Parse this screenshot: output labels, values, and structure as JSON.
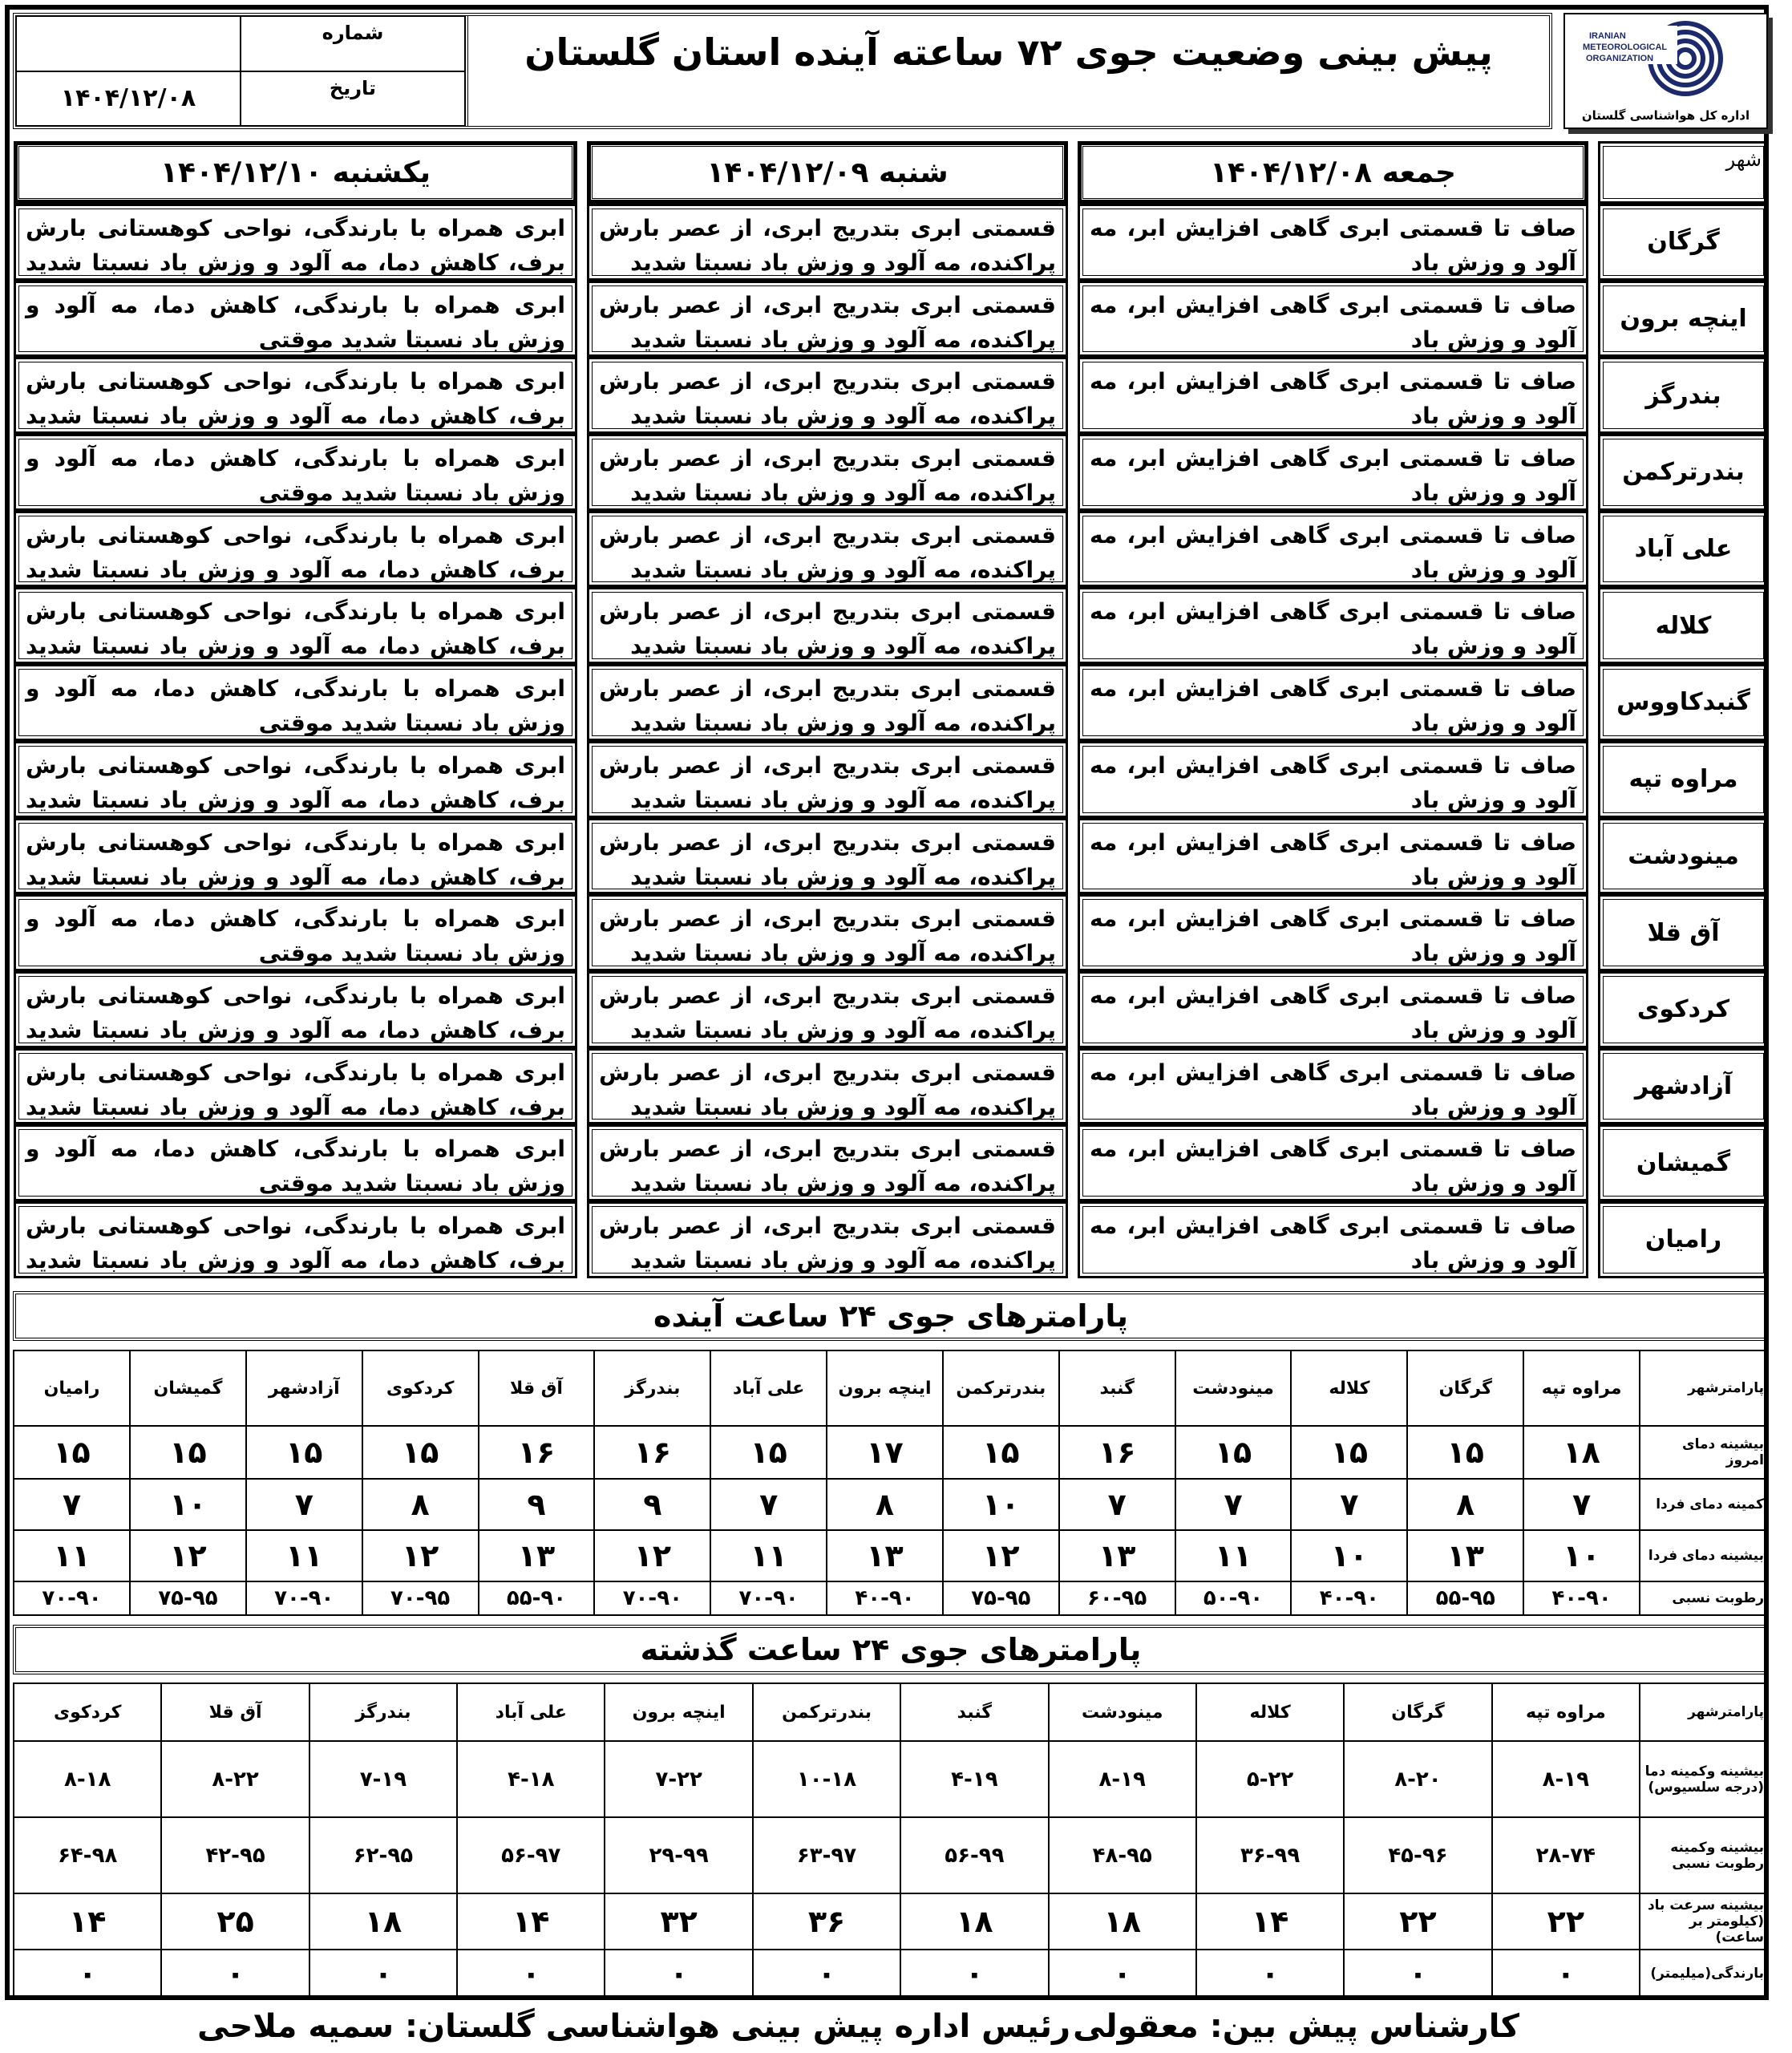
{
  "header": {
    "title": "پیش بینی وضعیت جوی ۷۲ ساعته آینده استان گلستان",
    "number_label": "شماره",
    "number_value": "",
    "date_label": "تاریخ",
    "date_value": "۱۴۰۴/۱۲/۰۸"
  },
  "logo": {
    "text_en": "IRANIAN METEOROLOGICAL ORGANIZATION",
    "caption": "اداره کل هواشناسی گلستان"
  },
  "forecast": {
    "city_header": "شهر",
    "days": [
      "جمعه ۱۴۰۴/۱۲/۰۸",
      "شنبه ۱۴۰۴/۱۲/۰۹",
      "یکشنبه ۱۴۰۴/۱۲/۱۰"
    ],
    "rows": [
      {
        "city": "گرگان",
        "d1": "صاف تا قسمتی ابری گاهی افزایش ابر، مه آلود و وزش باد",
        "d2": "قسمتی ابری بتدریج ابری، از عصر بارش پراکنده، مه آلود و وزش باد نسبتا شدید",
        "d3": "ابری همراه با بارندگی، نواحی کوهستانی بارش برف، کاهش دما، مه آلود و وزش باد نسبتا شدید موقتی"
      },
      {
        "city": "اینچه برون",
        "d1": "صاف تا قسمتی ابری گاهی افزایش ابر، مه آلود و وزش باد",
        "d2": "قسمتی ابری بتدریج ابری، از عصر بارش پراکنده، مه آلود و وزش باد نسبتا شدید",
        "d3": "ابری همراه با بارندگی، کاهش دما، مه آلود و وزش باد نسبتا شدید موقتی"
      },
      {
        "city": "بندرگز",
        "d1": "صاف تا قسمتی ابری گاهی افزایش ابر، مه آلود و وزش باد",
        "d2": "قسمتی ابری بتدریج ابری، از عصر بارش پراکنده، مه آلود و وزش باد نسبتا شدید",
        "d3": "ابری همراه با بارندگی، نواحی کوهستانی بارش برف، کاهش دما، مه آلود و وزش باد نسبتا شدید موقتی"
      },
      {
        "city": "بندرترکمن",
        "d1": "صاف تا قسمتی ابری گاهی افزایش ابر، مه آلود و وزش باد",
        "d2": "قسمتی ابری بتدریج ابری، از عصر بارش پراکنده، مه آلود و وزش باد نسبتا شدید",
        "d3": "ابری همراه با بارندگی، کاهش دما، مه آلود و وزش باد نسبتا شدید موقتی"
      },
      {
        "city": "علی آباد",
        "d1": "صاف تا قسمتی ابری گاهی افزایش ابر، مه آلود و وزش باد",
        "d2": "قسمتی ابری بتدریج ابری، از عصر بارش پراکنده، مه آلود و وزش باد نسبتا شدید",
        "d3": "ابری همراه با بارندگی، نواحی کوهستانی بارش برف، کاهش دما، مه آلود و وزش باد نسبتا شدید موقتی"
      },
      {
        "city": "کلاله",
        "d1": "صاف تا قسمتی ابری گاهی افزایش ابر، مه آلود و وزش باد",
        "d2": "قسمتی ابری بتدریج ابری، از عصر بارش پراکنده، مه آلود و وزش باد نسبتا شدید",
        "d3": "ابری همراه با بارندگی، نواحی کوهستانی بارش برف، کاهش دما، مه آلود و وزش باد نسبتا شدید موقتی"
      },
      {
        "city": "گنبدکاووس",
        "d1": "صاف تا قسمتی ابری گاهی افزایش ابر، مه آلود و وزش باد",
        "d2": "قسمتی ابری بتدریج ابری، از عصر بارش پراکنده، مه آلود و وزش باد نسبتا شدید",
        "d3": "ابری همراه با بارندگی، کاهش دما، مه آلود و وزش باد نسبتا شدید موقتی"
      },
      {
        "city": "مراوه تپه",
        "d1": "صاف تا قسمتی ابری گاهی افزایش ابر، مه آلود و وزش باد",
        "d2": "قسمتی ابری بتدریج ابری، از عصر بارش پراکنده، مه آلود و وزش باد نسبتا شدید",
        "d3": "ابری همراه با بارندگی، نواحی کوهستانی بارش برف، کاهش دما، مه آلود و وزش باد نسبتا شدید موقتی"
      },
      {
        "city": "مینودشت",
        "d1": "صاف تا قسمتی ابری گاهی افزایش ابر، مه آلود و وزش باد",
        "d2": "قسمتی ابری بتدریج ابری، از عصر بارش پراکنده، مه آلود و وزش باد نسبتا شدید",
        "d3": "ابری همراه با بارندگی، نواحی کوهستانی بارش برف، کاهش دما، مه آلود و وزش باد نسبتا شدید موقتی"
      },
      {
        "city": "آق قلا",
        "d1": "صاف تا قسمتی ابری گاهی افزایش ابر، مه آلود و وزش باد",
        "d2": "قسمتی ابری بتدریج ابری، از عصر بارش پراکنده، مه آلود و وزش باد نسبتا شدید",
        "d3": "ابری همراه با بارندگی، کاهش دما، مه آلود و وزش باد نسبتا شدید موقتی"
      },
      {
        "city": "کردکوی",
        "d1": "صاف تا قسمتی ابری گاهی افزایش ابر، مه آلود و وزش باد",
        "d2": "قسمتی ابری بتدریج ابری، از عصر بارش پراکنده، مه آلود و وزش باد نسبتا شدید",
        "d3": "ابری همراه با بارندگی، نواحی کوهستانی بارش برف، کاهش دما، مه آلود و وزش باد نسبتا شدید موقتی"
      },
      {
        "city": "آزادشهر",
        "d1": "صاف تا قسمتی ابری گاهی افزایش ابر، مه آلود و وزش باد",
        "d2": "قسمتی ابری بتدریج ابری، از عصر بارش پراکنده، مه آلود و وزش باد نسبتا شدید",
        "d3": "ابری همراه با بارندگی، نواحی کوهستانی بارش برف، کاهش دما، مه آلود و وزش باد نسبتا شدید موقتی"
      },
      {
        "city": "گمیشان",
        "d1": "صاف تا قسمتی ابری گاهی افزایش ابر، مه آلود و وزش باد",
        "d2": "قسمتی ابری بتدریج ابری، از عصر بارش پراکنده، مه آلود و وزش باد نسبتا شدید",
        "d3": "ابری همراه با بارندگی، کاهش دما، مه آلود و وزش باد نسبتا شدید موقتی"
      },
      {
        "city": "رامیان",
        "d1": "صاف تا قسمتی ابری گاهی افزایش ابر، مه آلود و وزش باد",
        "d2": "قسمتی ابری بتدریج ابری، از عصر بارش پراکنده، مه آلود و وزش باد نسبتا شدید",
        "d3": "ابری همراه با بارندگی، نواحی کوهستانی بارش برف، کاهش دما، مه آلود و وزش باد نسبتا شدید موقتی"
      }
    ]
  },
  "next24": {
    "title": "پارامترهای جوی ۲۴ ساعت آینده",
    "corner": "پارامترشهر",
    "cities": [
      "مراوه تپه",
      "گرگان",
      "کلاله",
      "مینودشت",
      "گنبد",
      "بندرترکمن",
      "اینچه برون",
      "علی آباد",
      "بندرگز",
      "آق قلا",
      "کردکوی",
      "آزادشهر",
      "گمیشان",
      "رامیان"
    ],
    "rows": [
      {
        "label": "بیشینه دمای امروز",
        "values": [
          "۱۸",
          "۱۵",
          "۱۵",
          "۱۵",
          "۱۶",
          "۱۵",
          "۱۷",
          "۱۵",
          "۱۶",
          "۱۶",
          "۱۵",
          "۱۵",
          "۱۵",
          "۱۵"
        ]
      },
      {
        "label": "کمینه دمای فردا",
        "values": [
          "۷",
          "۸",
          "۷",
          "۷",
          "۷",
          "۱۰",
          "۸",
          "۷",
          "۹",
          "۹",
          "۸",
          "۷",
          "۱۰",
          "۷"
        ]
      },
      {
        "label": "بیشینه دمای فردا",
        "values": [
          "۱۰",
          "۱۳",
          "۱۰",
          "۱۱",
          "۱۳",
          "۱۲",
          "۱۳",
          "۱۱",
          "۱۲",
          "۱۳",
          "۱۲",
          "۱۱",
          "۱۲",
          "۱۱"
        ]
      },
      {
        "label": "رطوبت نسبی",
        "values": [
          "۴۰-۹۰",
          "۵۵-۹۵",
          "۴۰-۹۰",
          "۵۰-۹۰",
          "۶۰-۹۵",
          "۷۵-۹۵",
          "۴۰-۹۰",
          "۷۰-۹۰",
          "۷۰-۹۰",
          "۵۵-۹۰",
          "۷۰-۹۵",
          "۷۰-۹۰",
          "۷۵-۹۵",
          "۷۰-۹۰"
        ]
      }
    ]
  },
  "past24": {
    "title": "پارامترهای جوی ۲۴ ساعت گذشته",
    "corner": "پارامترشهر",
    "cities": [
      "مراوه تپه",
      "گرگان",
      "کلاله",
      "مینودشت",
      "گنبد",
      "بندرترکمن",
      "اینچه برون",
      "علی آباد",
      "بندرگز",
      "آق قلا",
      "کردکوی"
    ],
    "rows": [
      {
        "label": "بیشینه وکمینه دما (درجه سلسیوس)",
        "values": [
          "۸-۱۹",
          "۸-۲۰",
          "۵-۲۲",
          "۸-۱۹",
          "۴-۱۹",
          "۱۰-۱۸",
          "۷-۲۲",
          "۴-۱۸",
          "۷-۱۹",
          "۸-۲۲",
          "۸-۱۸"
        ]
      },
      {
        "label": "بیشینه وکمینه رطوبت نسبی",
        "values": [
          "۲۸-۷۴",
          "۴۵-۹۶",
          "۳۶-۹۹",
          "۴۸-۹۵",
          "۵۶-۹۹",
          "۶۳-۹۷",
          "۲۹-۹۹",
          "۵۶-۹۷",
          "۶۲-۹۵",
          "۴۲-۹۵",
          "۶۴-۹۸"
        ]
      },
      {
        "label": "بیشینه سرعت باد (کیلومتر بر ساعت)",
        "values": [
          "۲۲",
          "۲۲",
          "۱۴",
          "۱۸",
          "۱۸",
          "۳۶",
          "۳۲",
          "۱۴",
          "۱۸",
          "۲۵",
          "۱۴"
        ]
      },
      {
        "label": "بارندگی(میلیمتر)",
        "values": [
          "۰",
          "۰",
          "۰",
          "۰",
          "۰",
          "۰",
          "۰",
          "۰",
          "۰",
          "۰",
          "۰"
        ]
      }
    ]
  },
  "footer": {
    "forecaster": "کارشناس پیش بین: معقولی",
    "head": "رئیس اداره پیش بینی هواشناسی گلستان: سمیه ملاحی"
  },
  "colors": {
    "ink": "#000000",
    "logo_blue": "#1c2a6b"
  }
}
